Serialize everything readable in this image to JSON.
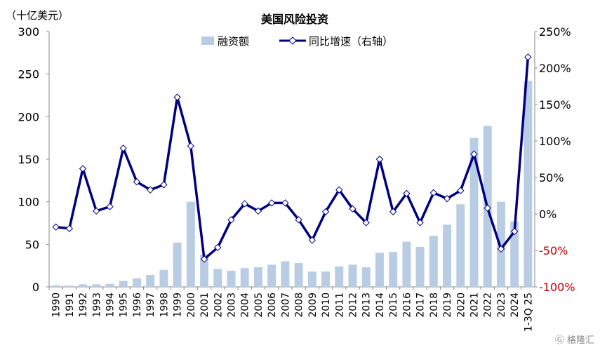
{
  "chart_data": {
    "type": "bar+line",
    "title": "美国风险投资",
    "left_unit": "（十亿美元）",
    "categories": [
      "1990",
      "1991",
      "1992",
      "1993",
      "1994",
      "1995",
      "1996",
      "1997",
      "1998",
      "1999",
      "2000",
      "2001",
      "2002",
      "2003",
      "2004",
      "2005",
      "2006",
      "2007",
      "2008",
      "2009",
      "2010",
      "2011",
      "2012",
      "2013",
      "2014",
      "2015",
      "2016",
      "2017",
      "2018",
      "2019",
      "2020",
      "2021",
      "2022",
      "2023",
      "2024",
      "1-3Q 25"
    ],
    "series": [
      {
        "name": "融资额",
        "type": "bar",
        "axis": "left",
        "color": "#b8cce4",
        "values": [
          2,
          1.5,
          3,
          3,
          3.5,
          7,
          10,
          14,
          20,
          52,
          100,
          38,
          21,
          19,
          22,
          23,
          26,
          30,
          28,
          18,
          18,
          24,
          26,
          23,
          40,
          41,
          53,
          47,
          60,
          73,
          97,
          175,
          189,
          100,
          77,
          242
        ]
      },
      {
        "name": "同比增速（右轴）",
        "type": "line",
        "axis": "right",
        "color": "#000080",
        "unit": "%",
        "values": [
          -18,
          -20,
          62,
          4,
          10,
          90,
          44,
          33,
          40,
          160,
          93,
          -62,
          -46,
          -8,
          14,
          4,
          15,
          15,
          -8,
          -36,
          3,
          33,
          7,
          -12,
          75,
          3,
          28,
          -12,
          29,
          21,
          32,
          82,
          8,
          -48,
          -24,
          215
        ]
      }
    ],
    "left_ylim": [
      0,
      300
    ],
    "left_ticks": [
      "0",
      "50",
      "100",
      "150",
      "200",
      "250",
      "300"
    ],
    "right_ylim": [
      -100,
      250
    ],
    "right_ticks": [
      "-100%",
      "-50%",
      "0%",
      "50%",
      "100%",
      "150%",
      "200%",
      "250%"
    ],
    "negative_tick_color": "#c00000",
    "grid": false,
    "legend_placement": "top-center"
  },
  "watermark": "格隆汇"
}
